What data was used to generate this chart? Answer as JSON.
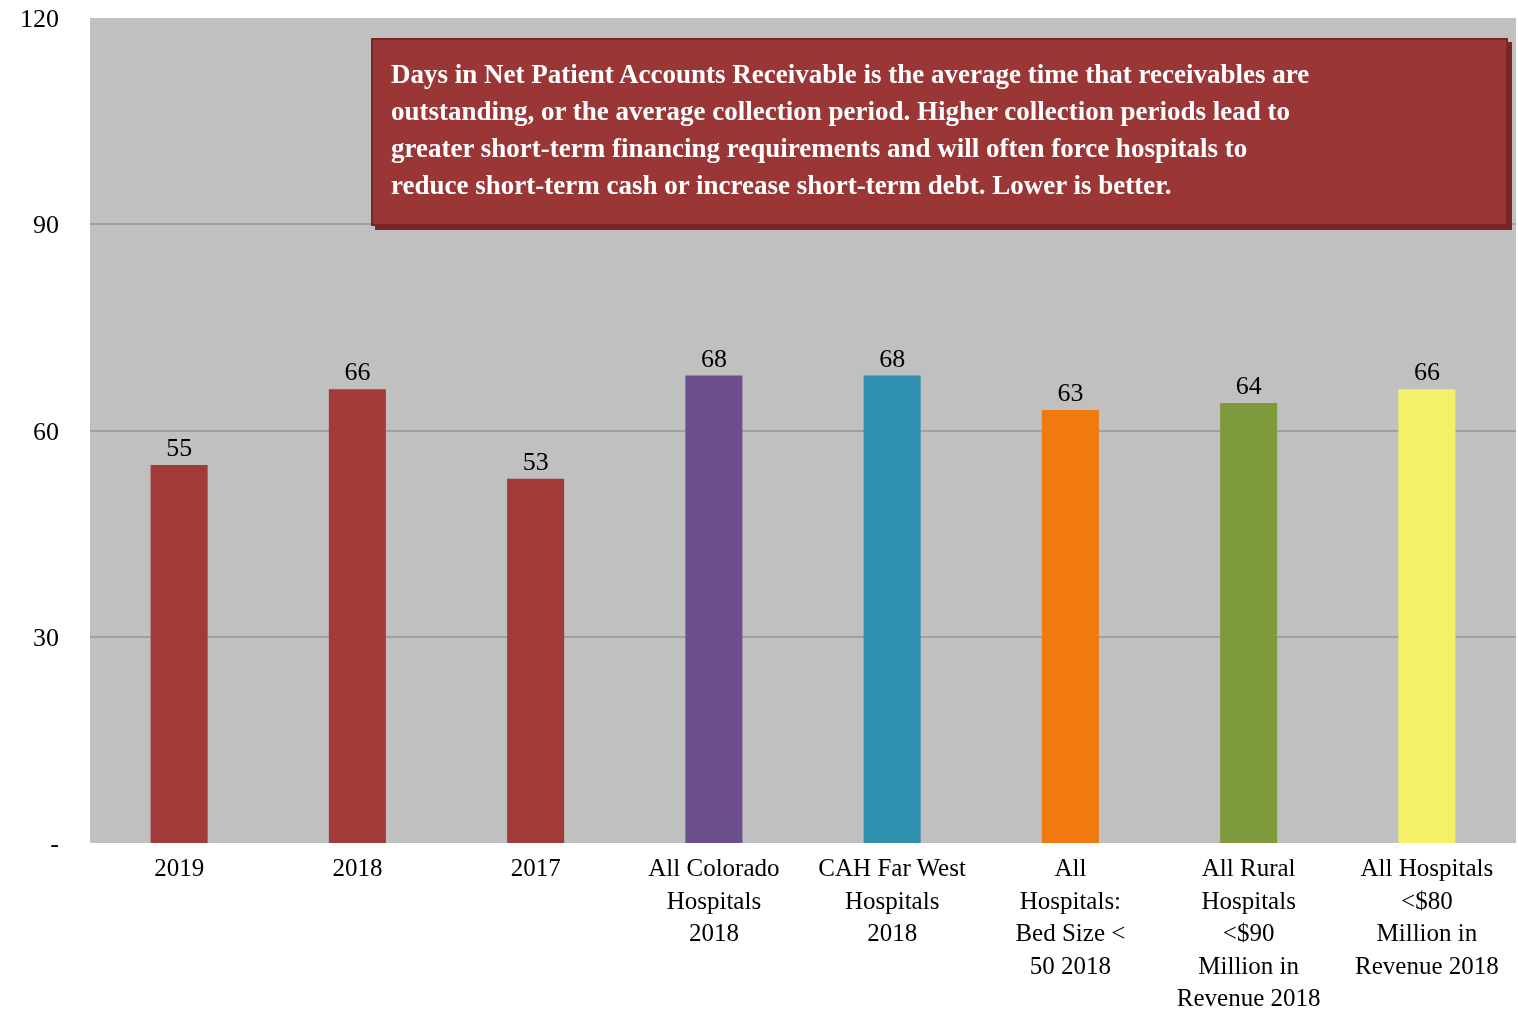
{
  "chart_data": {
    "type": "bar",
    "categories": [
      "2019",
      "2018",
      "2017",
      "All Colorado Hospitals 2018",
      "CAH Far West Hospitals 2018",
      "All Hospitals: Bed Size < 50 2018",
      "All Rural Hospitals <$90 Million in Revenue 2018",
      "All Hospitals <$80 Million in Revenue 2018"
    ],
    "values": [
      55,
      66,
      53,
      68,
      68,
      63,
      64,
      66
    ],
    "colors": [
      "#a23a3a",
      "#a23a3a",
      "#a23a3a",
      "#6a4f8c",
      "#2f8fae",
      "#f07a10",
      "#7f9a3c",
      "#f5f06a"
    ],
    "ylim": [
      0,
      120
    ],
    "yticks": [
      {
        "value": 0,
        "label": "-"
      },
      30,
      60,
      90,
      120
    ],
    "grid": "y",
    "data_labels": true,
    "annotations": [
      "Days in Net Patient Accounts Receivable is the average time that receivables are outstanding, or the average collection period. Higher collection periods lead to greater short-term financing requirements and will often force hospitals to reduce short-term cash or increase short-term debt. Lower is better."
    ]
  }
}
